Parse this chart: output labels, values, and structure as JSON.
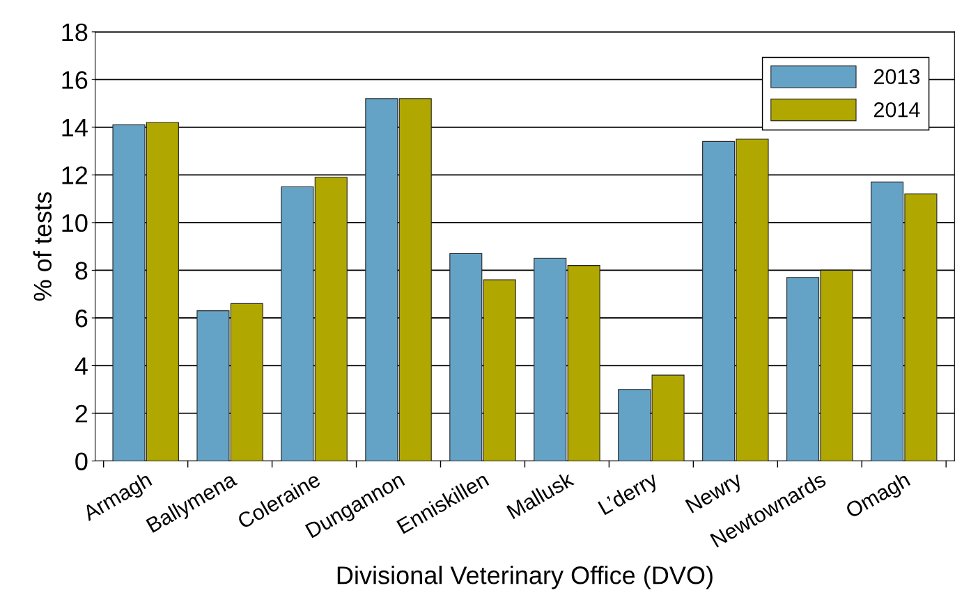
{
  "chart_data": {
    "type": "bar",
    "xlabel": "Divisional Veterinary Office (DVO)",
    "ylabel": "% of tests",
    "categories": [
      "Armagh",
      "Ballymena",
      "Coleraine",
      "Dungannon",
      "Enniskillen",
      "Mallusk",
      "L’derry",
      "Newry",
      "Newtownards",
      "Omagh"
    ],
    "series": [
      {
        "name": "2013",
        "color": "#65a3c6",
        "values": [
          14.1,
          6.3,
          11.5,
          15.2,
          8.7,
          8.5,
          3.0,
          13.4,
          7.7,
          11.7
        ]
      },
      {
        "name": "2014",
        "color": "#b0a800",
        "values": [
          14.2,
          6.6,
          11.9,
          15.2,
          7.6,
          8.2,
          3.6,
          13.5,
          8.0,
          11.2
        ]
      }
    ],
    "ylim": [
      0,
      18
    ],
    "yticks": [
      0,
      2,
      4,
      6,
      8,
      10,
      12,
      14,
      16,
      18
    ],
    "grid": "y",
    "legend": "top right"
  }
}
